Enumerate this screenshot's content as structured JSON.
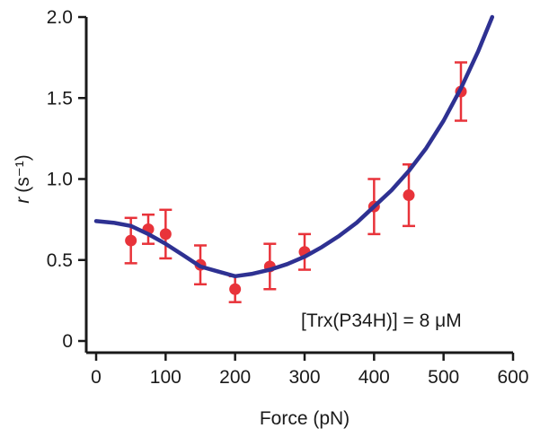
{
  "chart_data": {
    "type": "scatter",
    "title": "",
    "xlabel": "Force (pN)",
    "ylabel": {
      "symbol": "r",
      "unit": "(s⁻¹)"
    },
    "xlim": [
      0,
      600
    ],
    "ylim": [
      0,
      2.0
    ],
    "xticks": [
      0,
      100,
      200,
      300,
      400,
      500,
      600
    ],
    "yticks": [
      0,
      0.5,
      1.0,
      1.5,
      2.0
    ],
    "ytick_labels": [
      "0",
      "0.5",
      "1.0",
      "1.5",
      "2.0"
    ],
    "grid": false,
    "annotation": "[Trx(P34H)] = 8 μM",
    "series": [
      {
        "name": "data",
        "kind": "scatter-errorbar",
        "color": "#e8333a",
        "points": [
          {
            "x": 50,
            "y": 0.62,
            "err": 0.14
          },
          {
            "x": 75,
            "y": 0.69,
            "err": 0.09
          },
          {
            "x": 100,
            "y": 0.66,
            "err": 0.15
          },
          {
            "x": 150,
            "y": 0.47,
            "err": 0.12
          },
          {
            "x": 200,
            "y": 0.32,
            "err": 0.08
          },
          {
            "x": 250,
            "y": 0.46,
            "err": 0.14
          },
          {
            "x": 300,
            "y": 0.55,
            "err": 0.11
          },
          {
            "x": 400,
            "y": 0.83,
            "err": 0.17
          },
          {
            "x": 450,
            "y": 0.9,
            "err": 0.19
          },
          {
            "x": 525,
            "y": 1.54,
            "err": 0.18
          }
        ]
      },
      {
        "name": "fit",
        "kind": "line",
        "color": "#2e3192",
        "x": [
          0,
          25,
          50,
          75,
          100,
          125,
          150,
          175,
          200,
          225,
          250,
          275,
          300,
          325,
          350,
          375,
          400,
          425,
          450,
          475,
          500,
          525,
          550,
          570
        ],
        "y": [
          0.74,
          0.73,
          0.71,
          0.66,
          0.6,
          0.53,
          0.46,
          0.43,
          0.4,
          0.415,
          0.44,
          0.475,
          0.52,
          0.58,
          0.65,
          0.73,
          0.83,
          0.93,
          1.05,
          1.19,
          1.36,
          1.56,
          1.79,
          2.0
        ]
      }
    ]
  }
}
